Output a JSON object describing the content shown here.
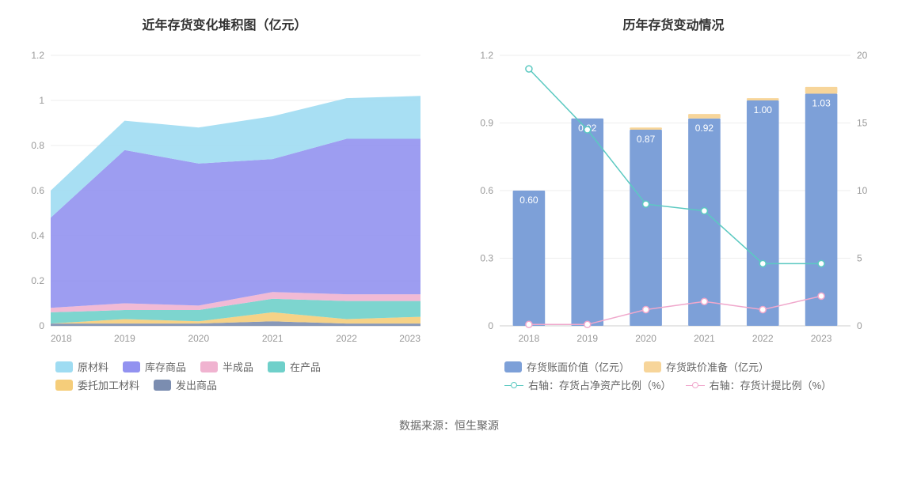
{
  "source_label": "数据来源：恒生聚源",
  "left_chart": {
    "title": "近年存货变化堆积图（亿元）",
    "type": "stacked_area",
    "categories": [
      "2018",
      "2019",
      "2020",
      "2021",
      "2022",
      "2023"
    ],
    "y_axis": {
      "min": 0,
      "max": 1.2,
      "step": 0.2,
      "ticks": [
        "0",
        "0.2",
        "0.4",
        "0.6",
        "0.8",
        "1",
        "1.2"
      ]
    },
    "series": [
      {
        "name": "发出商品",
        "color": "#7b8db0",
        "values": [
          0.01,
          0.01,
          0.01,
          0.02,
          0.01,
          0.01
        ]
      },
      {
        "name": "委托加工材料",
        "color": "#f5cd7a",
        "values": [
          0.0,
          0.02,
          0.01,
          0.04,
          0.02,
          0.03
        ]
      },
      {
        "name": "在产品",
        "color": "#6fd0ca",
        "values": [
          0.05,
          0.04,
          0.05,
          0.06,
          0.08,
          0.07
        ]
      },
      {
        "name": "半成品",
        "color": "#f0b3d0",
        "values": [
          0.02,
          0.03,
          0.02,
          0.03,
          0.03,
          0.03
        ]
      },
      {
        "name": "库存商品",
        "color": "#9292f0",
        "values": [
          0.4,
          0.68,
          0.63,
          0.59,
          0.69,
          0.69
        ]
      },
      {
        "name": "原材料",
        "color": "#9fdcf2",
        "values": [
          0.12,
          0.13,
          0.16,
          0.19,
          0.18,
          0.19
        ]
      }
    ],
    "legend_order": [
      "原材料",
      "库存商品",
      "半成品",
      "在产品",
      "委托加工材料",
      "发出商品"
    ],
    "background_color": "#ffffff",
    "grid_color": "#eeeeee",
    "axis_text_color": "#999999",
    "label_fontsize": 12,
    "title_fontsize": 16
  },
  "right_chart": {
    "title": "历年存货变动情况",
    "type": "bar_line_combo",
    "categories": [
      "2018",
      "2019",
      "2020",
      "2021",
      "2022",
      "2023"
    ],
    "y_left": {
      "min": 0,
      "max": 1.2,
      "step": 0.3,
      "ticks": [
        "0",
        "0.3",
        "0.6",
        "0.9",
        "1.2"
      ]
    },
    "y_right": {
      "min": 0,
      "max": 20,
      "step": 5,
      "ticks": [
        "0",
        "5",
        "10",
        "15",
        "20"
      ]
    },
    "bars": [
      {
        "name": "存货账面价值（亿元）",
        "color": "#7da0d8",
        "values": [
          0.6,
          0.92,
          0.87,
          0.92,
          1.0,
          1.03
        ],
        "show_labels": true
      },
      {
        "name": "存货跌价准备（亿元）",
        "color": "#f7d59a",
        "values": [
          0.0,
          0.0,
          0.01,
          0.02,
          0.01,
          0.03
        ],
        "show_labels": false
      }
    ],
    "lines": [
      {
        "name": "右轴：存货占净资产比例（%）",
        "axis": "right",
        "color": "#5bc9c1",
        "marker": "circle",
        "values": [
          19.0,
          14.5,
          9.0,
          8.5,
          4.6,
          4.6
        ]
      },
      {
        "name": "右轴：存货计提比例（%）",
        "axis": "right",
        "color": "#f0a8cc",
        "marker": "circle",
        "values": [
          0.1,
          0.1,
          1.2,
          1.8,
          1.2,
          2.2
        ]
      }
    ],
    "bar_width": 0.55,
    "background_color": "#ffffff",
    "grid_color": "#eeeeee",
    "axis_text_color": "#999999",
    "label_fontsize": 12,
    "title_fontsize": 16
  }
}
